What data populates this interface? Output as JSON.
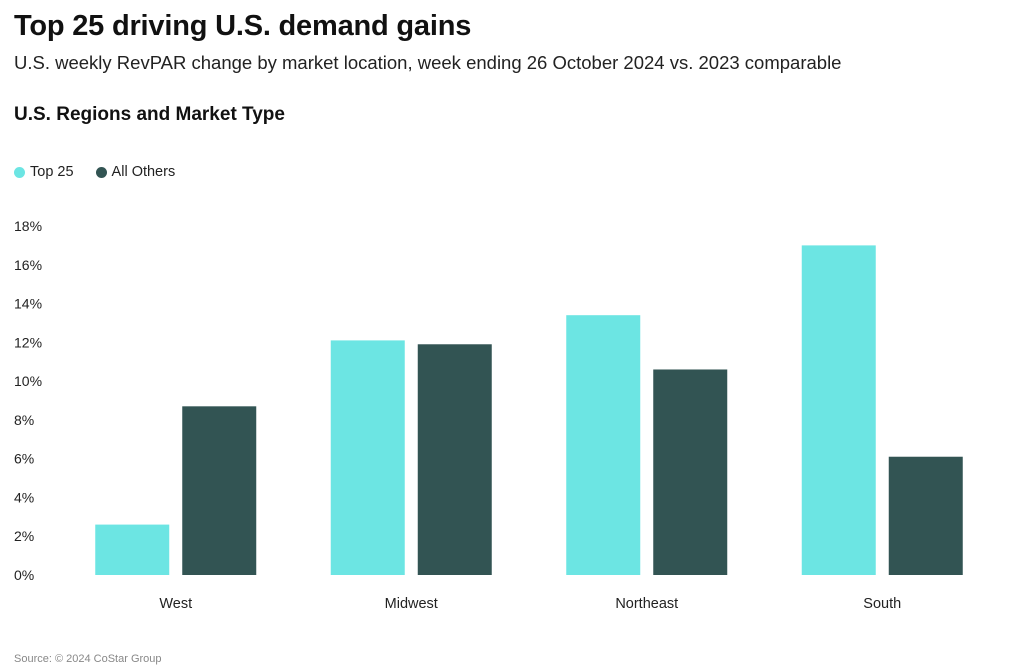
{
  "header": {
    "title": "Top 25 driving U.S. demand gains",
    "subtitle": "U.S. weekly RevPAR change by market location, week ending 26 October 2024 vs. 2023 comparable",
    "section_title": "U.S. Regions and Market Type"
  },
  "footer": {
    "source": "Source: © 2024 CoStar Group"
  },
  "colors": {
    "top25": "#6ce5e3",
    "all_others": "#325453",
    "axis_text": "#222222"
  },
  "chart_data": {
    "type": "bar",
    "title": "U.S. Regions and Market Type",
    "xlabel": "",
    "ylabel": "",
    "categories": [
      "West",
      "Midwest",
      "Northeast",
      "South"
    ],
    "series": [
      {
        "name": "Top 25",
        "values": [
          2.6,
          12.1,
          13.4,
          17.0
        ]
      },
      {
        "name": "All Others",
        "values": [
          8.7,
          11.9,
          10.6,
          6.1
        ]
      }
    ],
    "ylim": [
      0,
      18
    ],
    "yticks": [
      0,
      2,
      4,
      6,
      8,
      10,
      12,
      14,
      16,
      18
    ],
    "ytick_labels": [
      "0%",
      "2%",
      "4%",
      "6%",
      "8%",
      "10%",
      "12%",
      "14%",
      "16%",
      "18%"
    ],
    "grid": false,
    "legend_position": "top-left"
  }
}
